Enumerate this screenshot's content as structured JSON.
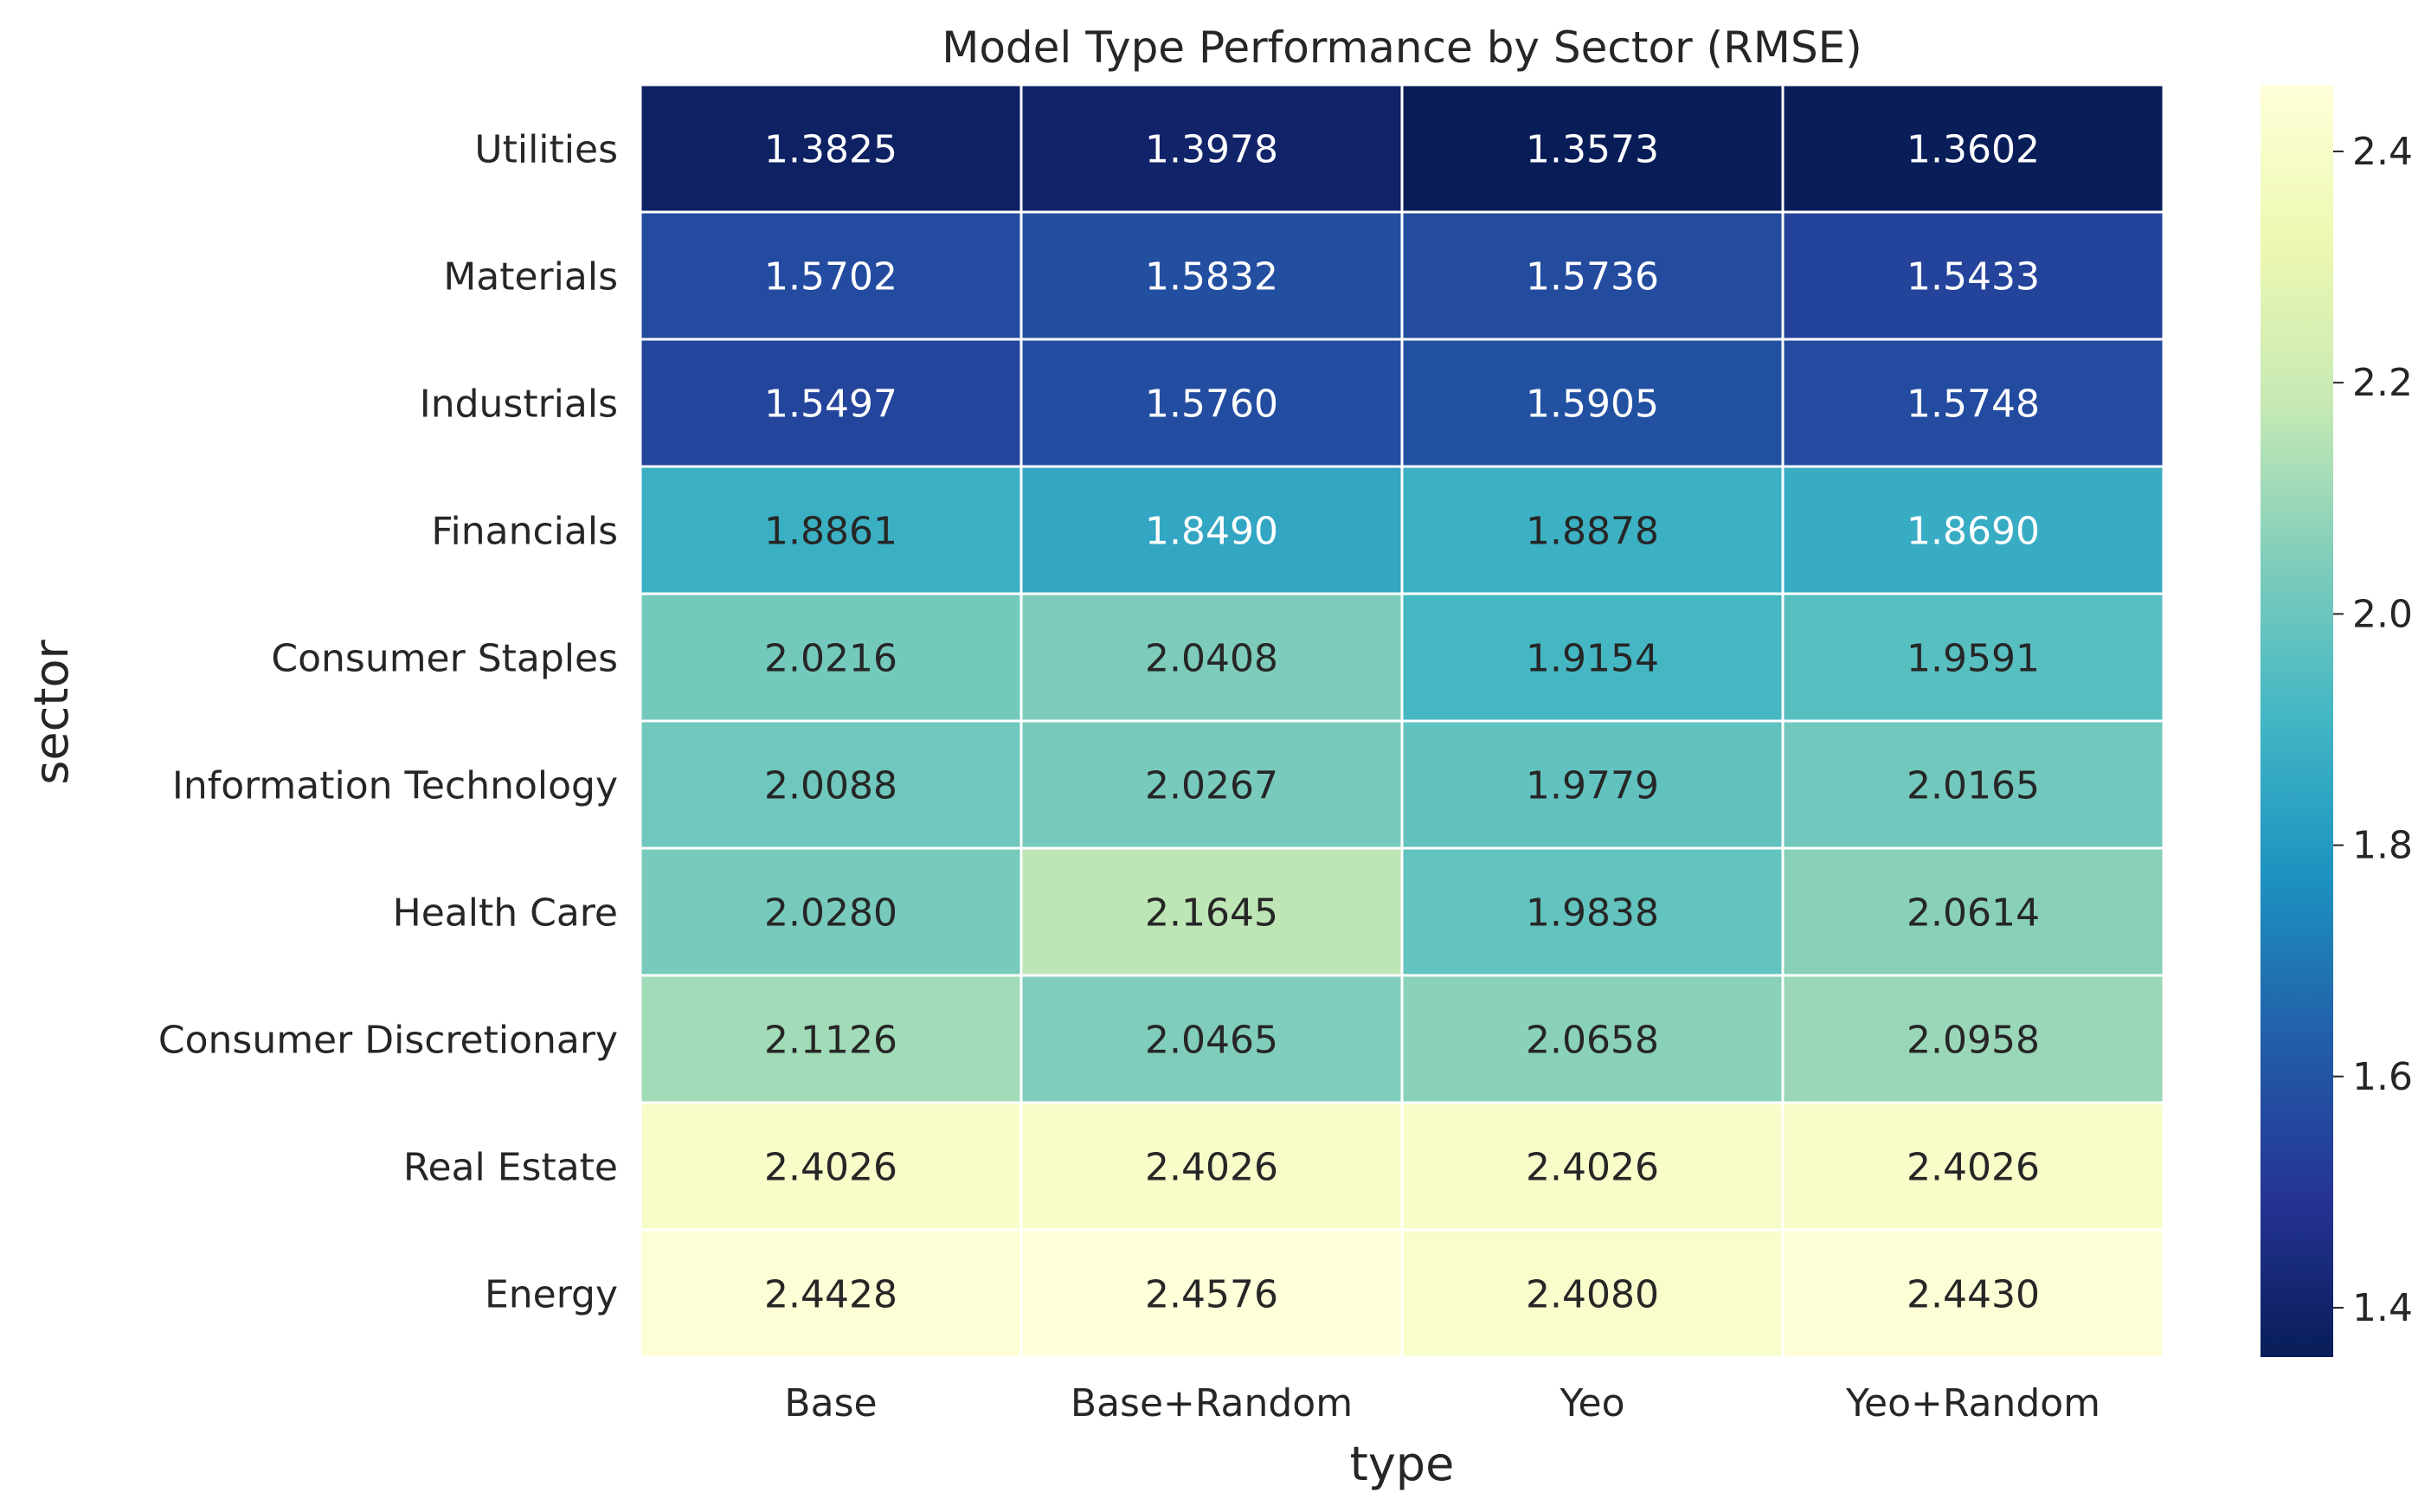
{
  "chart_data": {
    "type": "heatmap",
    "title": "Model Type Performance by Sector (RMSE)",
    "xlabel": "type",
    "ylabel": "sector",
    "x_categories": [
      "Base",
      "Base+Random",
      "Yeo",
      "Yeo+Random"
    ],
    "y_categories": [
      "Utilities",
      "Materials",
      "Industrials",
      "Financials",
      "Consumer Staples",
      "Information Technology",
      "Health Care",
      "Consumer Discretionary",
      "Real Estate",
      "Energy"
    ],
    "values": [
      [
        1.3825,
        1.3978,
        1.3573,
        1.3602
      ],
      [
        1.5702,
        1.5832,
        1.5736,
        1.5433
      ],
      [
        1.5497,
        1.576,
        1.5905,
        1.5748
      ],
      [
        1.8861,
        1.849,
        1.8878,
        1.869
      ],
      [
        2.0216,
        2.0408,
        1.9154,
        1.9591
      ],
      [
        2.0088,
        2.0267,
        1.9779,
        2.0165
      ],
      [
        2.028,
        2.1645,
        1.9838,
        2.0614
      ],
      [
        2.1126,
        2.0465,
        2.0658,
        2.0958
      ],
      [
        2.4026,
        2.4026,
        2.4026,
        2.4026
      ],
      [
        2.4428,
        2.4576,
        2.408,
        2.443
      ]
    ],
    "value_labels": [
      [
        "1.3825",
        "1.3978",
        "1.3573",
        "1.3602"
      ],
      [
        "1.5702",
        "1.5832",
        "1.5736",
        "1.5433"
      ],
      [
        "1.5497",
        "1.5760",
        "1.5905",
        "1.5748"
      ],
      [
        "1.8861",
        "1.8490",
        "1.8878",
        "1.8690"
      ],
      [
        "2.0216",
        "2.0408",
        "1.9154",
        "1.9591"
      ],
      [
        "2.0088",
        "2.0267",
        "1.9779",
        "2.0165"
      ],
      [
        "2.0280",
        "2.1645",
        "1.9838",
        "2.0614"
      ],
      [
        "2.1126",
        "2.0465",
        "2.0658",
        "2.0958"
      ],
      [
        "2.4026",
        "2.4026",
        "2.4026",
        "2.4026"
      ],
      [
        "2.4428",
        "2.4576",
        "2.4080",
        "2.4430"
      ]
    ],
    "colormap": "YlGnBu",
    "colorbar": {
      "vmin": 1.3573,
      "vmax": 2.4576,
      "ticks": [
        1.4,
        1.6,
        1.8,
        2.0,
        2.2,
        2.4
      ],
      "tick_labels": [
        "1.4",
        "1.6",
        "1.8",
        "2.0",
        "2.2",
        "2.4"
      ]
    },
    "cell_border_color": "#ffffff",
    "annotation_dark_text": "#262626",
    "annotation_light_text": "#ffffff"
  }
}
